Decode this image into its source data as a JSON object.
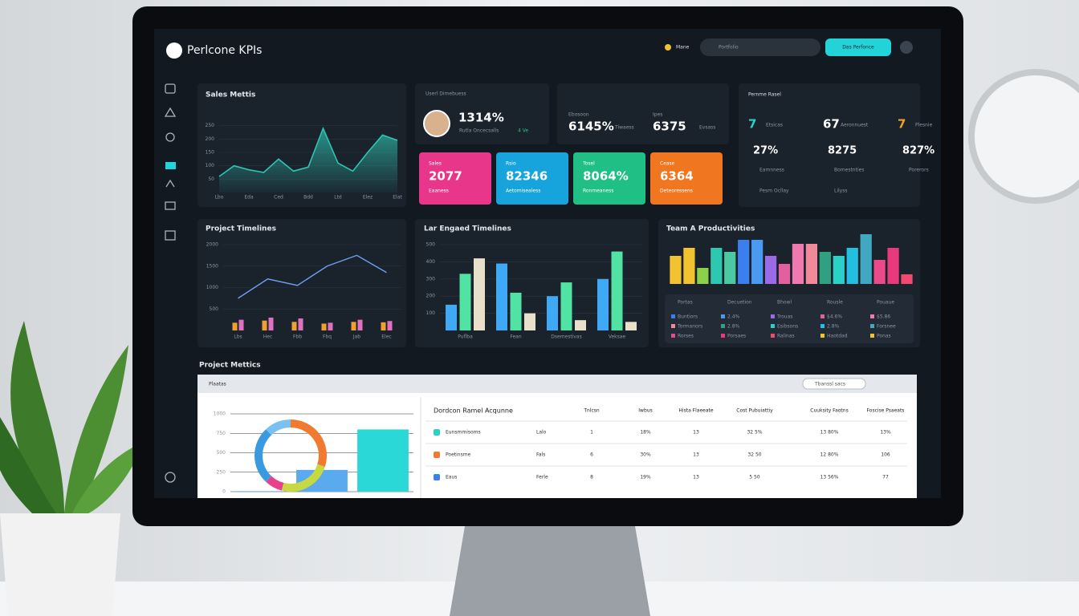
{
  "header": {
    "title": "Perlcone KPIs",
    "user": "Mane",
    "search": "Portfolio",
    "button": "Das Perfonce"
  },
  "user_card": {
    "title": "Userl Dimebuess",
    "value": "1314%",
    "sub": "Rutla Oncecsalls",
    "delta": "4 Ve"
  },
  "summary": [
    {
      "label": "Ebosoon",
      "value": "6145%",
      "note": "Tiwaess"
    },
    {
      "label": "Ipes",
      "value": "6375",
      "note": "Evsass"
    }
  ],
  "cards": [
    {
      "label": "Sales",
      "value": "2077",
      "note": "Eaaness",
      "color": "#e8378b"
    },
    {
      "label": "Rsio",
      "value": "82346",
      "note": "Aetomisealess",
      "color": "#17a3dc"
    },
    {
      "label": "Tosel",
      "value": "8064%",
      "note": "Ronmeaness",
      "color": "#1fbf86"
    },
    {
      "label": "Cease",
      "value": "6364",
      "note": "Deteoressens",
      "color": "#f07620"
    }
  ],
  "perf": {
    "title": "Pernme Rasel",
    "figures": [
      "7",
      "67",
      "7"
    ],
    "rows": [
      [
        "Etsicas",
        "Aeronnuest",
        "Plesnie"
      ],
      [
        "27%",
        "8275",
        "827%"
      ],
      [
        "Eamnness",
        "Bomestnties",
        "Porerors"
      ],
      [
        "Pesm Ocllay",
        "Lilyss"
      ]
    ]
  },
  "sales_chart": {
    "type": "area",
    "title": "Sales Mettis",
    "color": "#2fc4b2",
    "categories": [
      "Lbo",
      null,
      "Eda",
      null,
      "Ced",
      null,
      "Bdd",
      null,
      "Ltd",
      null,
      "Elez",
      null,
      "Elat"
    ],
    "values": [
      60,
      100,
      85,
      75,
      125,
      80,
      95,
      240,
      110,
      80,
      150,
      215,
      195
    ],
    "ylim": [
      0,
      300
    ],
    "yticks": [
      50,
      100,
      150,
      200,
      250
    ]
  },
  "timeline_chart": {
    "type": "combo",
    "title": "Project Timelines",
    "categories": [
      "Lbs",
      "Hec",
      "Fbb",
      "Fbq",
      "Jab",
      "Elec"
    ],
    "ylim": [
      0,
      2000
    ],
    "yticks": [
      500,
      1000,
      1500,
      2000
    ],
    "series": [
      {
        "kind": "line",
        "color": "#6c9ff0",
        "values": [
          750,
          1200,
          1050,
          1500,
          1750,
          1350
        ]
      },
      {
        "kind": "bar",
        "color": "#f0a030",
        "values": [
          180,
          230,
          200,
          160,
          200,
          190
        ]
      },
      {
        "kind": "bar",
        "color": "#e070c0",
        "values": [
          250,
          300,
          280,
          180,
          250,
          220
        ]
      }
    ]
  },
  "engaged_chart": {
    "type": "bar",
    "title": "Lar Engaed Timelines",
    "categories": [
      "Puflba",
      "Fean",
      "Dsemestivas",
      "Veksae"
    ],
    "ylim": [
      0,
      500
    ],
    "yticks": [
      100,
      200,
      300,
      400,
      500
    ],
    "series": [
      {
        "color": "#3fa9f5",
        "values": [
          150,
          390,
          200,
          300
        ]
      },
      {
        "color": "#50e3a4",
        "values": [
          330,
          220,
          280,
          460
        ]
      },
      {
        "color": "#e8e0c8",
        "values": [
          420,
          100,
          60,
          50
        ]
      }
    ]
  },
  "team_chart": {
    "type": "bar",
    "title": "Team A Productivities",
    "values": [
      35,
      45,
      20,
      45,
      40,
      55,
      55,
      35,
      25,
      50,
      50,
      40,
      35,
      45,
      62,
      30,
      45,
      12
    ],
    "colors": [
      "#f2c230",
      "#f2c230",
      "#8bd14a",
      "#2ec8b0",
      "#4cc9a0",
      "#3a7ef0",
      "#4a9af0",
      "#9b6ae8",
      "#e25fa0",
      "#f07ab0",
      "#f08a9a",
      "#30a080",
      "#2ad1c9",
      "#22c0e0",
      "#40a8c0",
      "#e84a8a",
      "#e83a7a",
      "#f04a70"
    ]
  },
  "team_legend": {
    "rows": [
      [
        "Portas",
        "Decuetion",
        "Bhowl",
        "Rousle",
        "Pouaue"
      ],
      [
        "Buntiors",
        "2.4%",
        "Trouas",
        "$4.6%",
        "$5.86"
      ],
      [
        "Tormanors",
        "2.8%",
        "Esibsons",
        "2.8%",
        "Forsnee"
      ],
      [
        "Rorses",
        "Porsaes",
        "Ralinas",
        "Haotdad",
        "Ponas"
      ]
    ]
  },
  "metrics": {
    "title": "Project Mettics",
    "panel_title": "Plaatas",
    "search": "Tbanssl sacs",
    "donut": {
      "type": "pie",
      "values": [
        30,
        24,
        8,
        26,
        12
      ],
      "colors": [
        "#f07a30",
        "#c8d840",
        "#e8408a",
        "#3a9ae0",
        "#7ac0f0"
      ]
    },
    "bars": {
      "type": "bar",
      "values": [
        5,
        280,
        800
      ],
      "colors": [
        "#3a9ae0",
        "#5aaaf0",
        "#2ad8d8"
      ],
      "ylim": [
        0,
        1000
      ],
      "yticks": [
        0,
        250,
        500,
        750,
        1000
      ]
    },
    "table": {
      "header": [
        "Dordcon Ramel Acqunne",
        "Tnlcsn",
        "Iwbus",
        "Hista Flaeeate",
        "Cost Pubuiattiy",
        "Cuuksity Faotns",
        "Foscise Psaeats"
      ],
      "rows": [
        {
          "color": "#2ad1c9",
          "cells": [
            "Eunsmmisoms",
            "Lalo",
            "1",
            "18%",
            "13",
            "32 5%",
            "13 80%",
            "13%"
          ]
        },
        {
          "color": "#f07a30",
          "cells": [
            "Poetinsme",
            "Fals",
            "6",
            "30%",
            "13",
            "32 50",
            "12 80%",
            "106"
          ]
        },
        {
          "color": "#3a7ef0",
          "cells": [
            "Eaus",
            "Ferle",
            "8",
            "19%",
            "13",
            "5 50",
            "13 56%",
            "77"
          ]
        }
      ]
    }
  }
}
